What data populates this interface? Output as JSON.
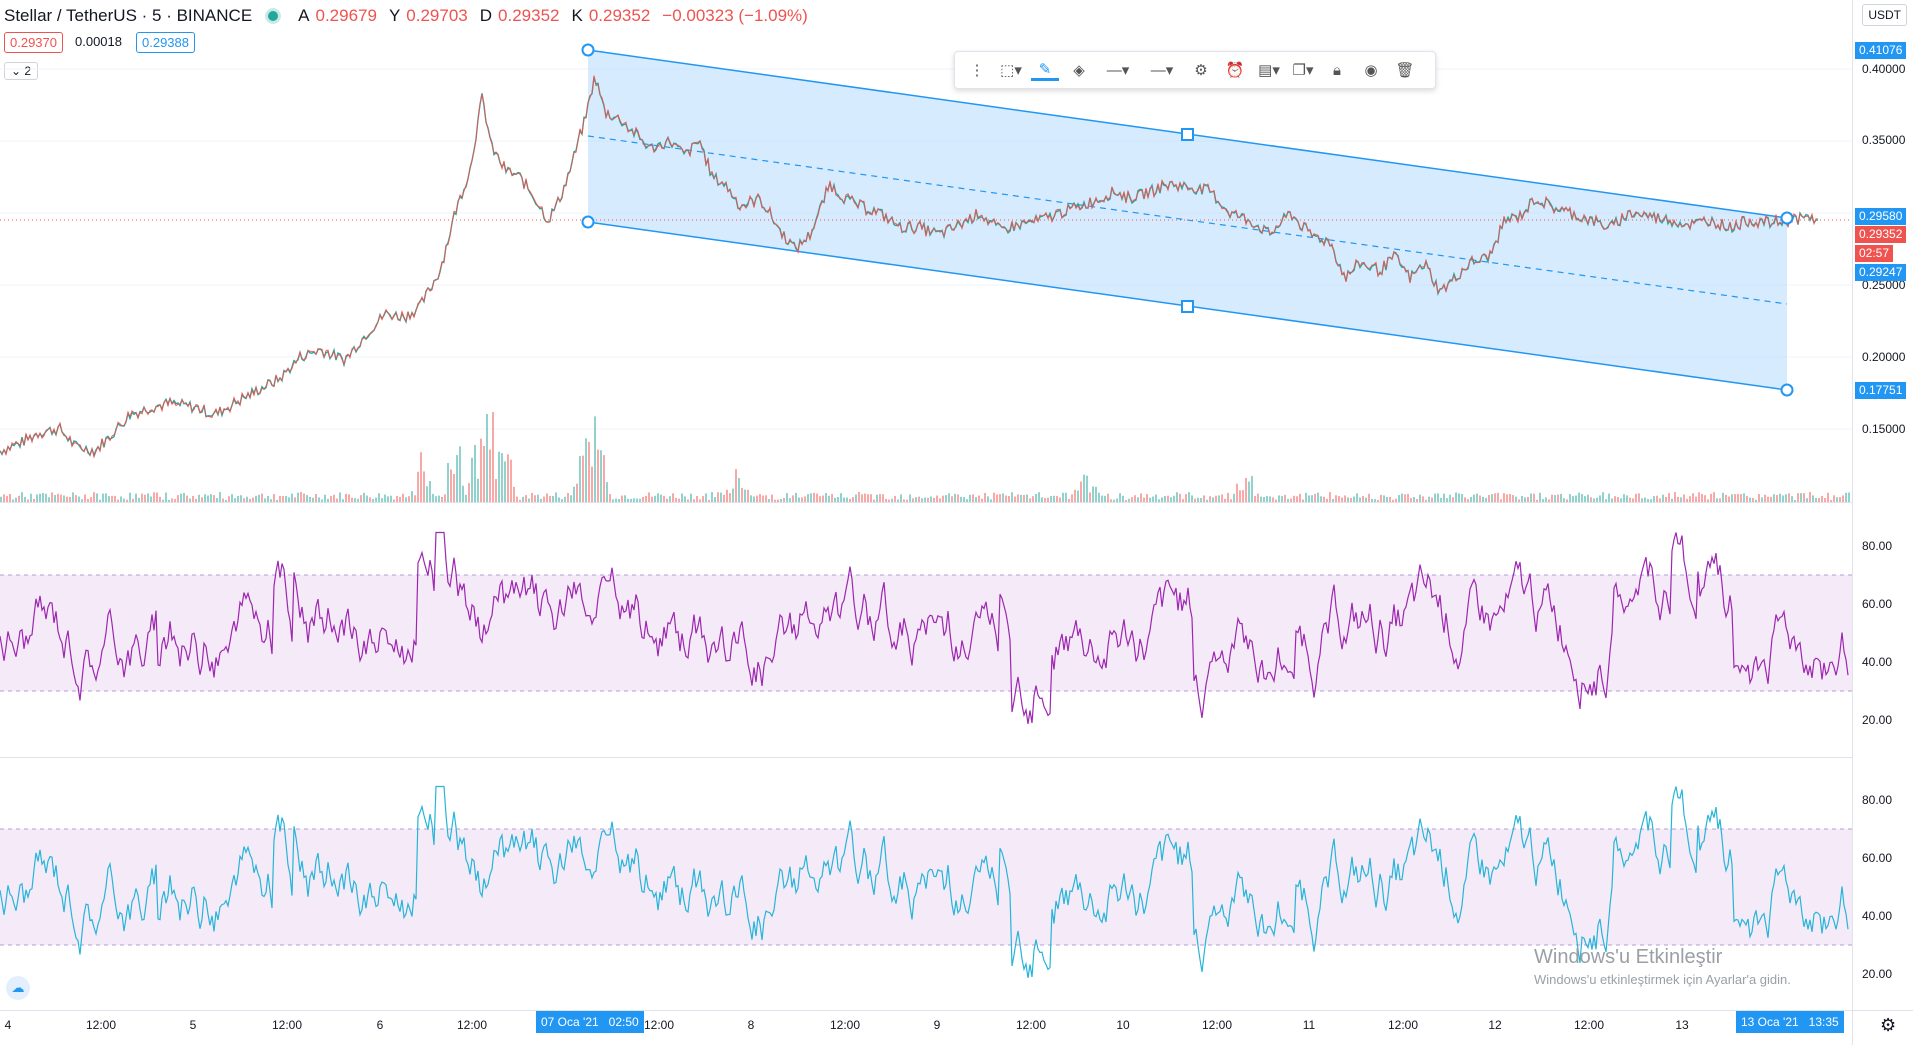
{
  "header": {
    "symbol": "Stellar / TetherUS · 5 · BINANCE",
    "o_label": "A",
    "o": "0.29679",
    "h_label": "Y",
    "h": "0.29703",
    "l_label": "D",
    "l": "0.29352",
    "c_label": "K",
    "c": "0.29352",
    "change": "−0.00323 (−1.09%)"
  },
  "bid": "0.29370",
  "spread": "0.00018",
  "ask": "0.29388",
  "collapse_label": "2",
  "currency": "USDT",
  "colors": {
    "up": "#26a69a",
    "down": "#ef5350",
    "channel": "#2196f3",
    "rsi1": "#9c27b0",
    "rsi2": "#26b5d9"
  },
  "price_axis": {
    "ticks": [
      "0.40000",
      "0.35000",
      "0.25000",
      "0.20000",
      "0.15000"
    ],
    "labels": {
      "channel_top": "0.41076",
      "right_top": "0.29580",
      "last": "0.29352",
      "countdown": "02:57",
      "right_bottom": "0.29247",
      "channel_bottom": "0.17751"
    }
  },
  "rsi_axis": {
    "ticks": [
      "80.00",
      "60.00",
      "40.00",
      "20.00"
    ]
  },
  "time_axis": {
    "ticks": [
      "4",
      "12:00",
      "5",
      "12:00",
      "6",
      "12:00",
      "12:00",
      "8",
      "12:00",
      "9",
      "12:00",
      "10",
      "12:00",
      "11",
      "12:00",
      "12",
      "12:00",
      "13"
    ],
    "highlight_left": "07 Oca '21   02:50",
    "highlight_right": "13 Oca '21   13:35"
  },
  "toolbar": {
    "icons": [
      "drag-handle-icon",
      "rectangle-icon",
      "pencil-icon",
      "fill-icon",
      "line-style-icon",
      "line-width-icon",
      "settings-icon",
      "alert-icon",
      "template-icon",
      "clone-icon",
      "lock-icon",
      "eye-icon",
      "trash-icon"
    ]
  },
  "watermark": {
    "title": "Windows'u Etkinleştir",
    "subtitle": "Windows'u etkinleştirmek için Ayarlar'a gidin."
  },
  "chart_data": {
    "type": "line",
    "price_scale": {
      "min": 0.12,
      "max": 0.42
    },
    "price_path": [
      [
        0,
        0.135
      ],
      [
        20,
        0.14
      ],
      [
        40,
        0.148
      ],
      [
        60,
        0.15
      ],
      [
        75,
        0.138
      ],
      [
        95,
        0.135
      ],
      [
        110,
        0.145
      ],
      [
        130,
        0.16
      ],
      [
        150,
        0.165
      ],
      [
        170,
        0.168
      ],
      [
        195,
        0.165
      ],
      [
        215,
        0.16
      ],
      [
        240,
        0.17
      ],
      [
        260,
        0.178
      ],
      [
        280,
        0.185
      ],
      [
        300,
        0.2
      ],
      [
        320,
        0.205
      ],
      [
        345,
        0.198
      ],
      [
        365,
        0.215
      ],
      [
        385,
        0.23
      ],
      [
        405,
        0.228
      ],
      [
        420,
        0.235
      ],
      [
        440,
        0.26
      ],
      [
        455,
        0.3
      ],
      [
        470,
        0.33
      ],
      [
        482,
        0.38
      ],
      [
        492,
        0.345
      ],
      [
        505,
        0.33
      ],
      [
        520,
        0.325
      ],
      [
        535,
        0.31
      ],
      [
        548,
        0.295
      ],
      [
        560,
        0.31
      ],
      [
        570,
        0.33
      ],
      [
        585,
        0.365
      ],
      [
        595,
        0.395
      ],
      [
        605,
        0.37
      ],
      [
        620,
        0.365
      ],
      [
        635,
        0.355
      ],
      [
        650,
        0.345
      ],
      [
        670,
        0.35
      ],
      [
        685,
        0.34
      ],
      [
        700,
        0.35
      ],
      [
        712,
        0.325
      ],
      [
        725,
        0.32
      ],
      [
        740,
        0.305
      ],
      [
        760,
        0.31
      ],
      [
        780,
        0.288
      ],
      [
        795,
        0.275
      ],
      [
        810,
        0.285
      ],
      [
        830,
        0.32
      ],
      [
        845,
        0.31
      ],
      [
        860,
        0.305
      ],
      [
        880,
        0.3
      ],
      [
        900,
        0.29
      ],
      [
        920,
        0.29
      ],
      [
        940,
        0.285
      ],
      [
        960,
        0.292
      ],
      [
        980,
        0.3
      ],
      [
        1000,
        0.288
      ],
      [
        1020,
        0.292
      ],
      [
        1040,
        0.295
      ],
      [
        1060,
        0.3
      ],
      [
        1080,
        0.305
      ],
      [
        1100,
        0.31
      ],
      [
        1115,
        0.315
      ],
      [
        1130,
        0.31
      ],
      [
        1150,
        0.315
      ],
      [
        1170,
        0.32
      ],
      [
        1190,
        0.318
      ],
      [
        1210,
        0.315
      ],
      [
        1230,
        0.3
      ],
      [
        1250,
        0.295
      ],
      [
        1270,
        0.285
      ],
      [
        1290,
        0.3
      ],
      [
        1310,
        0.285
      ],
      [
        1330,
        0.28
      ],
      [
        1345,
        0.255
      ],
      [
        1360,
        0.265
      ],
      [
        1380,
        0.26
      ],
      [
        1395,
        0.27
      ],
      [
        1410,
        0.255
      ],
      [
        1425,
        0.265
      ],
      [
        1440,
        0.245
      ],
      [
        1455,
        0.255
      ],
      [
        1470,
        0.265
      ],
      [
        1490,
        0.27
      ],
      [
        1505,
        0.295
      ],
      [
        1520,
        0.298
      ],
      [
        1535,
        0.31
      ],
      [
        1550,
        0.305
      ],
      [
        1570,
        0.3
      ],
      [
        1590,
        0.295
      ],
      [
        1610,
        0.29
      ],
      [
        1630,
        0.3
      ],
      [
        1650,
        0.298
      ],
      [
        1670,
        0.295
      ],
      [
        1690,
        0.292
      ],
      [
        1710,
        0.295
      ],
      [
        1730,
        0.29
      ],
      [
        1750,
        0.295
      ],
      [
        1770,
        0.293
      ],
      [
        1790,
        0.295
      ],
      [
        1800,
        0.296
      ],
      [
        1812,
        0.297
      ],
      [
        1818,
        0.2935
      ]
    ],
    "volume_spikes": [
      [
        420,
        0.4
      ],
      [
        455,
        0.7
      ],
      [
        470,
        0.5
      ],
      [
        482,
        1.0
      ],
      [
        492,
        0.9
      ],
      [
        505,
        0.5
      ],
      [
        585,
        0.8
      ],
      [
        595,
        0.9
      ],
      [
        735,
        0.3
      ],
      [
        1085,
        0.2
      ],
      [
        1245,
        0.35
      ]
    ],
    "rsi_scale": {
      "min": 10,
      "max": 90,
      "upper": 70,
      "lower": 30
    }
  }
}
